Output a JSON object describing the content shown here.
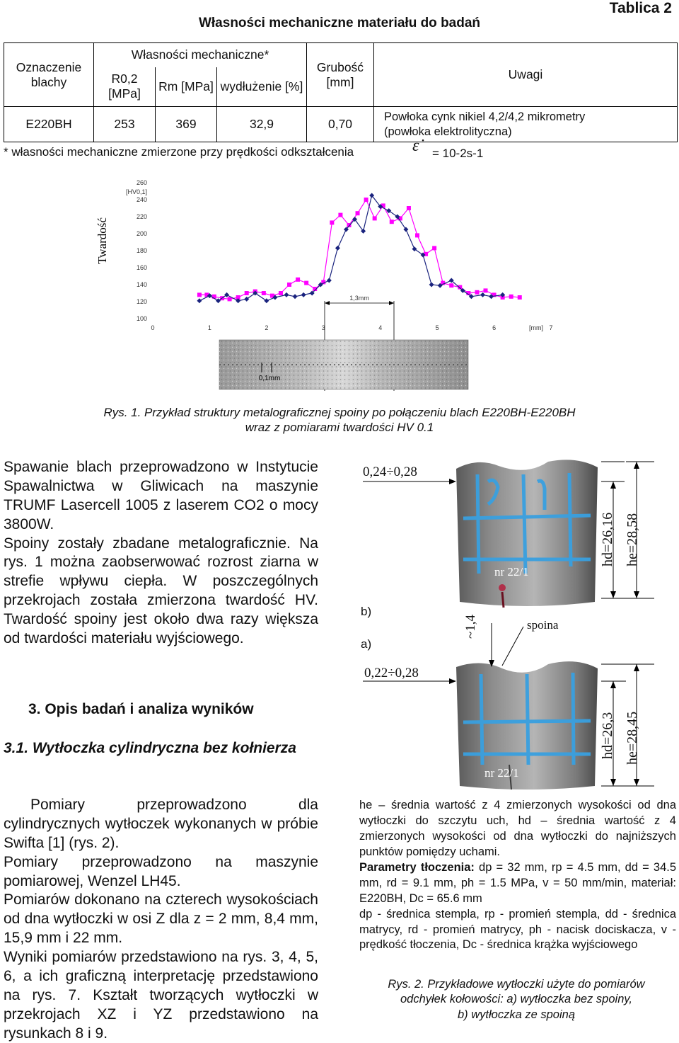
{
  "table": {
    "number": "Tablica 2",
    "title": "Własności mechaniczne materiału do badań",
    "h_oznaczenie": "Oznaczenie blachy",
    "h_wlasnosci": "Własności mechaniczne*",
    "h_r02": "R0,2 [MPa]",
    "h_rm": "Rm [MPa]",
    "h_wydl": "wydłużenie [%]",
    "h_grubosc": "Grubość [mm]",
    "h_uwagi": "Uwagi",
    "row": {
      "name": "E220BH",
      "r02": "253",
      "rm": "369",
      "wydl": "32,9",
      "grubosc": "0,70",
      "uwagi_1": "Powłoka  cynk nikiel  4,2/4,2 mikrometry",
      "uwagi_2": "(powłoka elektrolityczna)"
    },
    "footnote": "* własności mechaniczne zmierzone przy prędkości odkształcenia",
    "footnote_rate": "= 10-2s-1"
  },
  "chart_data": {
    "type": "line",
    "ylabel": "Twardość",
    "yunit": "[HV0,1]",
    "xunit": "[mm]",
    "ylim": [
      100,
      260
    ],
    "xlim": [
      0,
      7
    ],
    "yticks": [
      "260",
      "240",
      "220",
      "200",
      "180",
      "160",
      "140",
      "120",
      "100"
    ],
    "xticks": [
      "0",
      "1",
      "2",
      "3",
      "4",
      "5",
      "6",
      "7"
    ],
    "annotation_width": "1,3mm",
    "scale_label": "0,1mm",
    "series": [
      {
        "color": "#ff00ff",
        "x": [
          0.82,
          0.95,
          1.08,
          1.22,
          1.35,
          1.5,
          1.65,
          1.8,
          1.95,
          2.1,
          2.25,
          2.4,
          2.55,
          2.7,
          2.85,
          3.0,
          3.15,
          3.3,
          3.45,
          3.6,
          3.75,
          3.9,
          4.05,
          4.2,
          4.35,
          4.5,
          4.65,
          4.8,
          4.95,
          5.1,
          5.25,
          5.4,
          5.55,
          5.7,
          5.85,
          6.0,
          6.15,
          6.3,
          6.45
        ],
        "y": [
          128,
          128,
          126,
          124,
          123,
          125,
          130,
          132,
          130,
          127,
          130,
          140,
          146,
          142,
          135,
          143,
          213,
          222,
          210,
          224,
          240,
          218,
          233,
          214,
          218,
          230,
          198,
          176,
          183,
          142,
          139,
          137,
          130,
          131,
          133,
          128,
          125,
          126,
          125
        ]
      },
      {
        "color": "#1a237e",
        "x": [
          0.82,
          1.0,
          1.15,
          1.3,
          1.5,
          1.65,
          1.8,
          2.0,
          2.15,
          2.35,
          2.5,
          2.65,
          2.8,
          2.95,
          3.1,
          3.25,
          3.4,
          3.55,
          3.7,
          3.85,
          4.0,
          4.15,
          4.3,
          4.45,
          4.6,
          4.75,
          4.9,
          5.05,
          5.25,
          5.45,
          5.6,
          5.8,
          5.95,
          6.15
        ],
        "y": [
          121,
          127,
          121,
          128,
          121,
          123,
          130,
          121,
          125,
          128,
          126,
          128,
          130,
          140,
          145,
          183,
          205,
          217,
          203,
          245,
          232,
          227,
          220,
          205,
          182,
          175,
          140,
          139,
          145,
          133,
          126,
          128,
          126,
          128
        ]
      }
    ]
  },
  "caption1_line1": "Rys. 1. Przykład struktury metalograficznej spoiny po połączeniu blach E220BH-E220BH",
  "caption1_line2": "wraz z pomiarami twardości HV 0.1",
  "left_para1": "Spawanie blach przeprowadzono w Instytucie Spawalnictwa w Gliwicach na maszynie TRUMF Lasercell 1005 z laserem CO2 o mocy 3800W.",
  "left_para2": "Spoiny zostały zbadane metalograficznie. Na rys. 1 można zaobserwować rozrost ziarna w strefie wpływu ciepła. W poszczególnych przekrojach została zmierzona twardość HV. Twardość spoiny jest około dwa razy większa od twardości materiału wyjściowego.",
  "section3": "3. Opis badań i analiza wyników",
  "section31": "3.1. Wytłoczka cylindryczna bez kołnierza",
  "bottom_para1": "Pomiary przeprowadzono dla cylindrycznych wytłoczek wykonanych w próbie Swifta [1] (rys. 2).",
  "bottom_para2": "Pomiary przeprowadzono na maszynie pomiarowej, Wenzel LH45.",
  "bottom_para3": "Pomiarów dokonano na czterech wysokościach od dna wytłoczki w osi Z dla z = 2 mm, 8,4 mm, 15,9 mm i 22 mm.",
  "bottom_para4": "Wyniki pomiarów przedstawiono na rys. 3, 4, 5, 6, a ich graficzną interpretację przedstawiono na rys. 7. Kształt tworzących wytłoczki w przekrojach XZ i YZ przedstawiono na rysunkach 8 i 9.",
  "photos": {
    "label_b": "b)",
    "label_a": "a)",
    "top_thickness": "0,24÷0,28",
    "top_hd": "hd=26,16",
    "top_he": "he=28,58",
    "top_nr": "nr 22/1",
    "spoina": "spoina",
    "approx": "~1,4",
    "bottom_thickness": "0,22÷0,28",
    "bottom_hd": "hd=26,3",
    "bottom_he": "he=28,45",
    "bottom_nr": "nr 22/1"
  },
  "right_para1": "he – średnia wartość z 4 zmierzonych wysokości od dna wytłoczki do szczytu uch, hd – średnia wartość z 4 zmierzonych wysokości od dna wytłoczki do najniższych punktów pomiędzy uchami.",
  "right_params_label": "Parametry tłoczenia:",
  "right_params": " dp = 32 mm, rp = 4.5 mm, dd = 34.5 mm, rd = 9.1 mm, ph = 1.5 MPa, v = 50 mm/min, materiał: E220BH, Dc = 65.6 mm",
  "right_para3": "dp - średnica stempla, rp - promień stempla, dd - średnica matrycy, rd - promień matrycy, ph - nacisk docis­kacza, v - prędkość tłoczenia, Dc - średnica krążka wyjściowego",
  "caption2_l1": "Rys. 2. Przykładowe wytłoczki użyte do pomiarów",
  "caption2_l2": "odchyłek kołowości: a) wytłoczka bez spoiny,",
  "caption2_l3": "b) wytłoczka ze spoiną"
}
